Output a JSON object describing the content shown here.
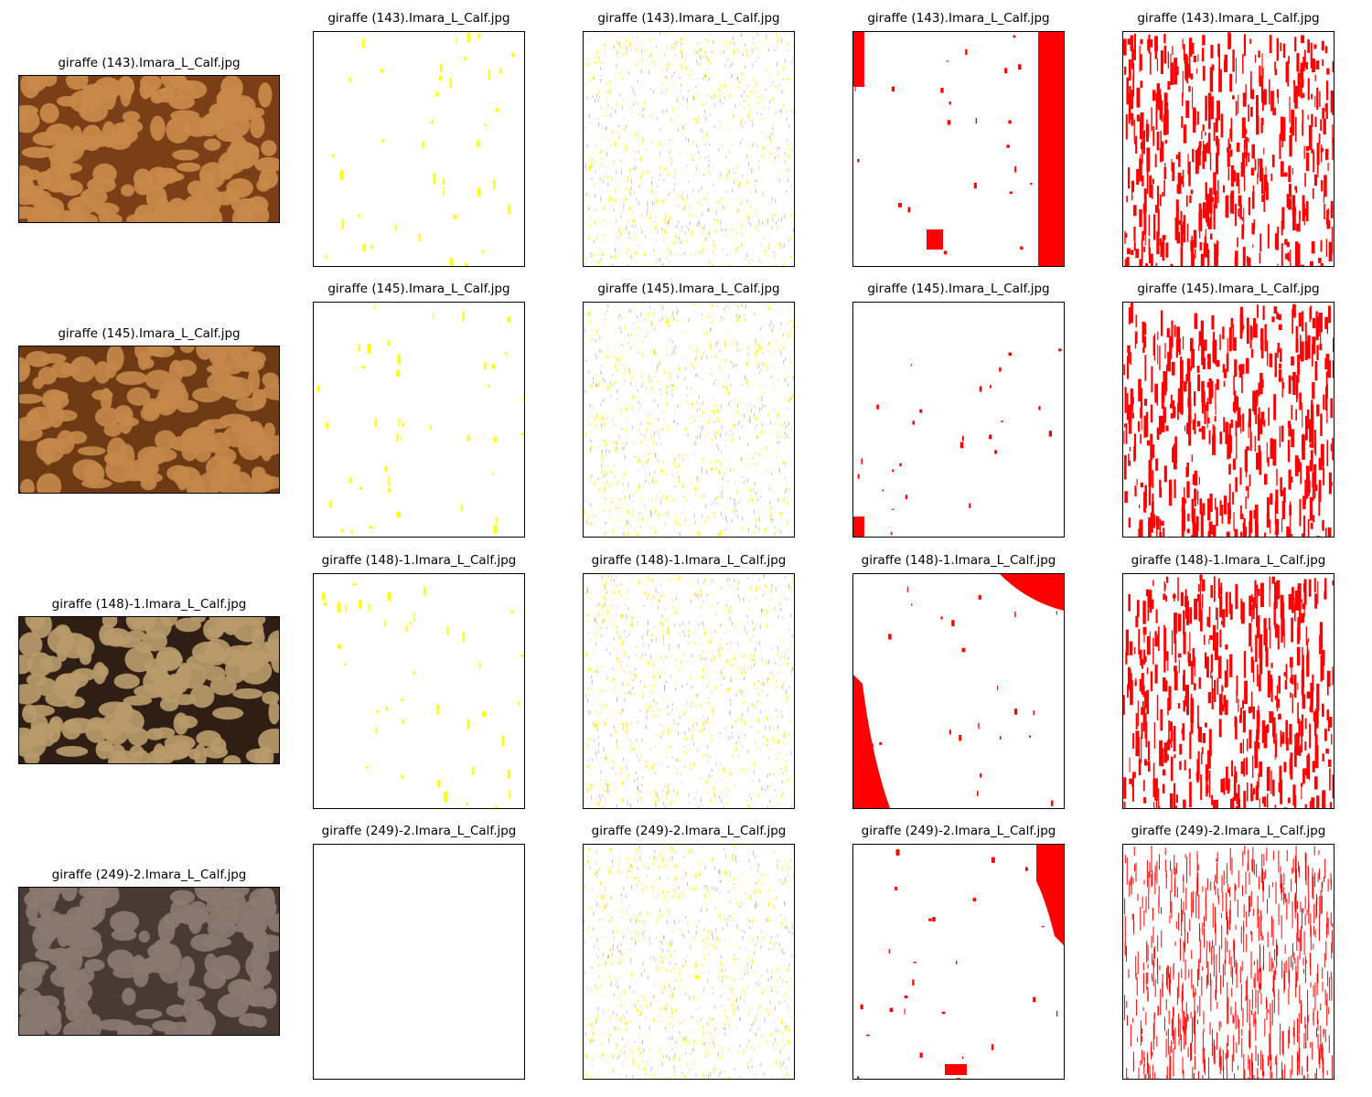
{
  "figure": {
    "rows": [
      {
        "titles": [
          "giraffe (143).Imara_L_Calf.jpg",
          "giraffe (143).Imara_L_Calf.jpg",
          "giraffe (143).Imara_L_Calf.jpg",
          "giraffe (143).Imara_L_Calf.jpg",
          "giraffe (143).Imara_L_Calf.jpg"
        ]
      },
      {
        "titles": [
          "giraffe (145).Imara_L_Calf.jpg",
          "giraffe (145).Imara_L_Calf.jpg",
          "giraffe (145).Imara_L_Calf.jpg",
          "giraffe (145).Imara_L_Calf.jpg",
          "giraffe (145).Imara_L_Calf.jpg"
        ]
      },
      {
        "titles": [
          "giraffe (148)-1.Imara_L_Calf.jpg",
          "giraffe (148)-1.Imara_L_Calf.jpg",
          "giraffe (148)-1.Imara_L_Calf.jpg",
          "giraffe (148)-1.Imara_L_Calf.jpg",
          "giraffe (148)-1.Imara_L_Calf.jpg"
        ]
      },
      {
        "titles": [
          "giraffe (249)-2.Imara_L_Calf.jpg",
          "giraffe (249)-2.Imara_L_Calf.jpg",
          "giraffe (249)-2.Imara_L_Calf.jpg",
          "giraffe (249)-2.Imara_L_Calf.jpg",
          "giraffe (249)-2.Imara_L_Calf.jpg"
        ]
      }
    ],
    "colors": {
      "yellow_mask": "#ffff00",
      "red_mask": "#ff0000",
      "photo_palettes": [
        [
          "#c98a4a",
          "#7a3f16"
        ],
        [
          "#c4884a",
          "#6e3a14"
        ],
        [
          "#b99a6a",
          "#2e1e14"
        ],
        [
          "#8a7a70",
          "#4a3a34"
        ]
      ]
    }
  }
}
